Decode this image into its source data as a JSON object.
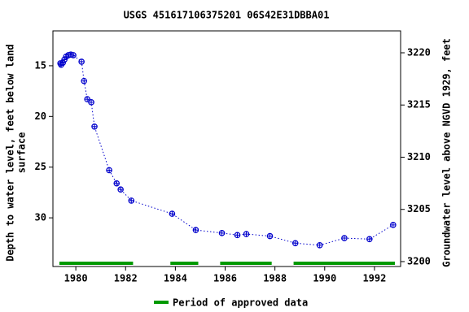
{
  "chart_data": {
    "type": "scatter",
    "title": "USGS 451617106375201 06S42E31DBBA01",
    "ylabel": [
      "Depth to water level, feet below land",
      "surface"
    ],
    "y2label": "Groundwater level above NGVD 1929, feet",
    "xlim": [
      1979.08,
      1993.05
    ],
    "xticks": [
      1980,
      1982,
      1984,
      1986,
      1988,
      1990,
      1992
    ],
    "ylim": [
      11.56,
      34.8
    ],
    "yticks": [
      15,
      20,
      25,
      30
    ],
    "y_inverted": true,
    "y2lim": [
      3222.1,
      3199.53
    ],
    "y2ticks": [
      3200,
      3205,
      3210,
      3215,
      3220
    ],
    "series": [
      {
        "name": "Depth to water level",
        "color": "#0000cc",
        "x": [
          1979.38,
          1979.41,
          1979.48,
          1979.54,
          1979.61,
          1979.7,
          1979.8,
          1979.9,
          1980.23,
          1980.33,
          1980.46,
          1980.62,
          1980.75,
          1981.34,
          1981.64,
          1981.8,
          1982.23,
          1983.87,
          1984.82,
          1985.87,
          1986.49,
          1986.85,
          1987.8,
          1988.82,
          1989.8,
          1990.79,
          1991.8,
          1992.75
        ],
        "values": [
          14.76,
          14.9,
          14.7,
          14.4,
          14.1,
          13.96,
          13.9,
          13.96,
          14.6,
          16.5,
          18.3,
          18.6,
          21.0,
          25.3,
          26.6,
          27.2,
          28.3,
          29.6,
          31.2,
          31.5,
          31.7,
          31.6,
          31.8,
          32.5,
          32.7,
          32.0,
          32.1,
          30.7
        ]
      }
    ],
    "approved": {
      "name": "Period of approved data",
      "color": "#009900",
      "periods": [
        {
          "start": 1979.34,
          "end": 1982.3
        },
        {
          "start": 1983.8,
          "end": 1984.92
        },
        {
          "start": 1985.8,
          "end": 1987.87
        },
        {
          "start": 1988.75,
          "end": 1992.82
        }
      ]
    }
  }
}
